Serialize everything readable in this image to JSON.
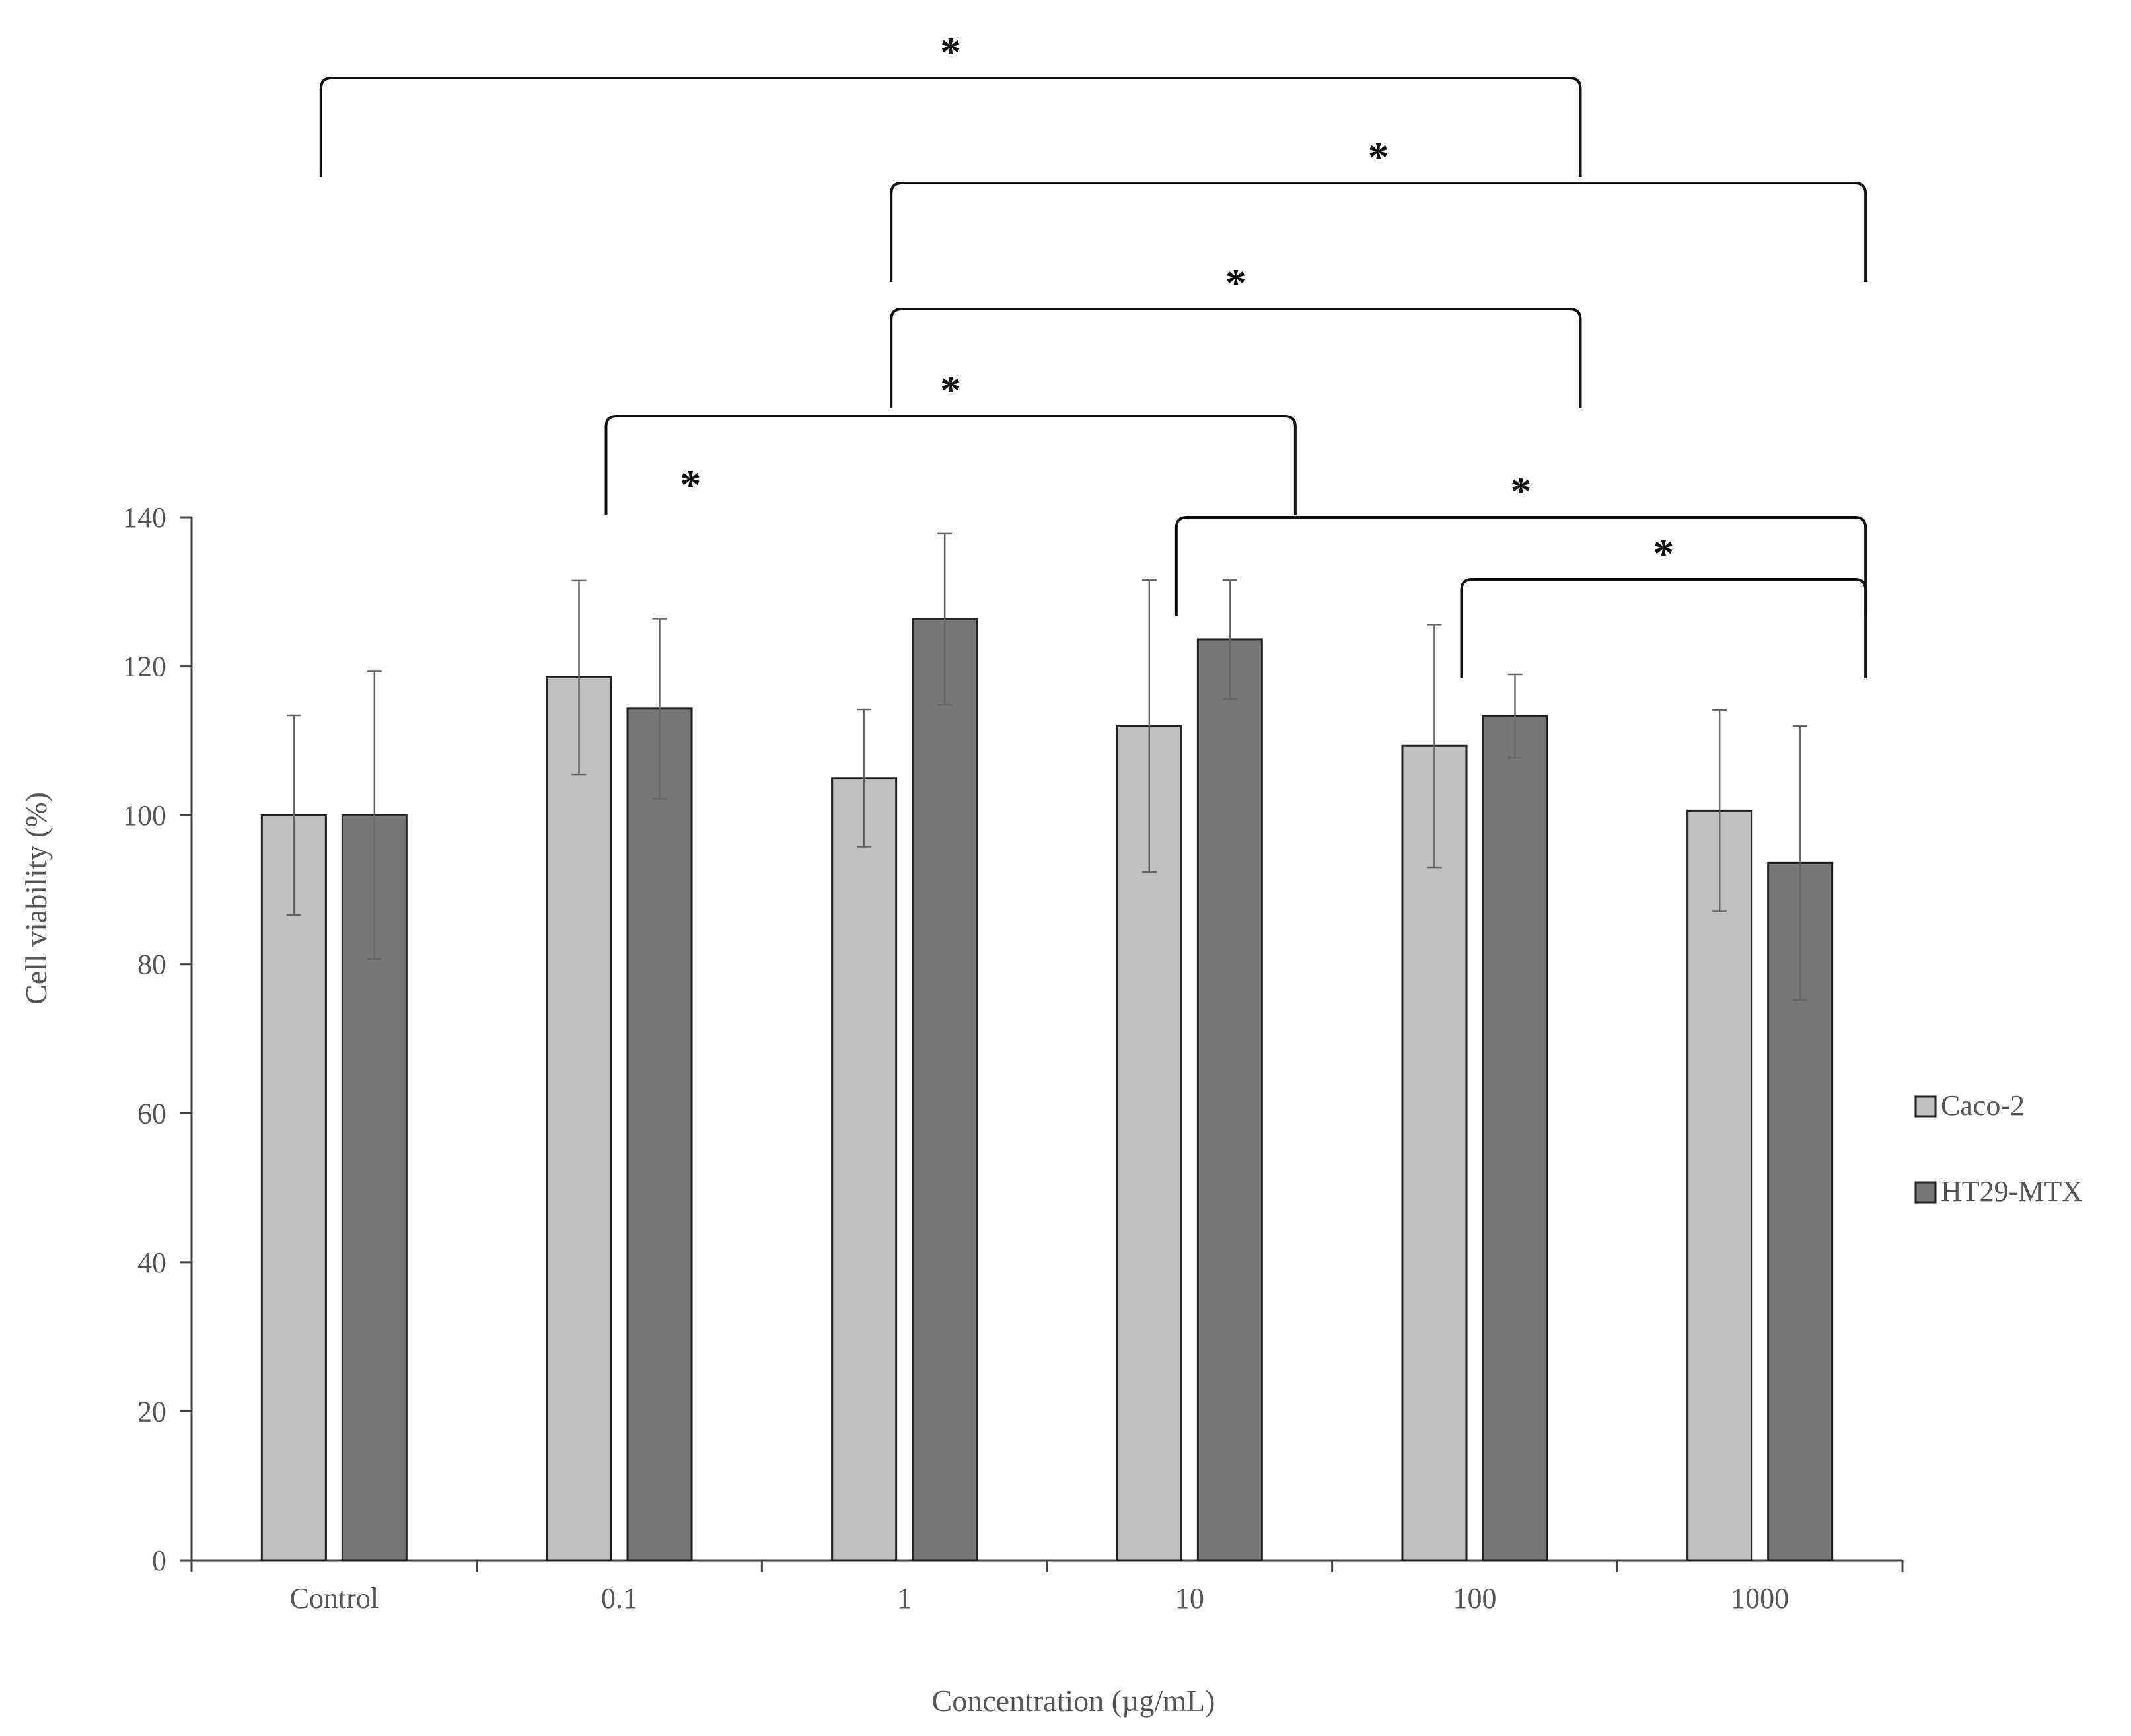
{
  "chart_data": {
    "type": "bar",
    "title": "",
    "xlabel": "Concentration (µg/mL)",
    "ylabel": "Cell viability (%)",
    "ylim": [
      0,
      140
    ],
    "yticks": [
      0,
      20,
      40,
      60,
      80,
      100,
      120,
      140
    ],
    "categories": [
      "Control",
      "0.1",
      "1",
      "10",
      "100",
      "1000"
    ],
    "series": [
      {
        "name": "Caco-2",
        "color": "#c0c0c0",
        "values": [
          100,
          118.5,
          105,
          112,
          109.3,
          100.6
        ],
        "errors": [
          13.4,
          13,
          9.2,
          19.6,
          16.3,
          13.5
        ]
      },
      {
        "name": "HT29-MTX",
        "color": "#777777",
        "values": [
          100,
          114.3,
          126.3,
          123.6,
          113.3,
          93.6
        ],
        "errors": [
          19.3,
          12.1,
          11.5,
          8,
          5.6,
          18.4
        ]
      }
    ],
    "legend": {
      "position": "right",
      "entries": [
        "Caco-2",
        "HT29-MTX"
      ]
    },
    "significance": [
      {
        "label": "*",
        "from_category": "Control",
        "to_category": "100",
        "level": 7
      },
      {
        "label": "*",
        "from_category": "1",
        "to_category": "1000",
        "level": 6
      },
      {
        "label": "*",
        "from_category": "1",
        "to_category": "100",
        "level": 5
      },
      {
        "label": "*",
        "from_category": "0.1",
        "to_category": "10",
        "level": 4
      },
      {
        "label": "*",
        "from_category": "10",
        "to_category": "1000",
        "level": 3
      },
      {
        "label": "*",
        "from_category": "100",
        "to_category": "1000",
        "level": 2
      },
      {
        "label": "*",
        "standalone": true,
        "near_category": "0.1"
      }
    ]
  }
}
